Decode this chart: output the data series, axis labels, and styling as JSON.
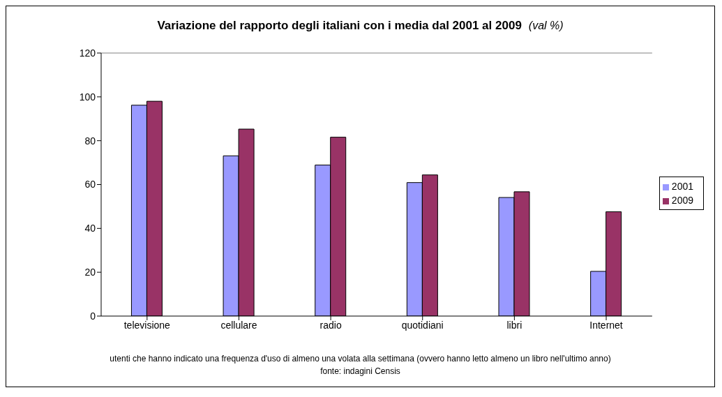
{
  "chart_data": {
    "type": "bar",
    "title": "Variazione del rapporto degli italiani con i media dal 2001 al 2009",
    "subtitle": "(val  %)",
    "categories": [
      "televisione",
      "cellulare",
      "radio",
      "quotidiani",
      "libri",
      "Internet"
    ],
    "series": [
      {
        "name": "2001",
        "color": "#9999ff",
        "values": [
          96.2,
          73.1,
          68.9,
          60.9,
          54.1,
          20.4
        ]
      },
      {
        "name": "2009",
        "color": "#993366",
        "values": [
          98,
          85.3,
          81.6,
          64.4,
          56.7,
          47.6
        ]
      }
    ],
    "ylim": [
      0,
      120
    ],
    "yticks": [
      0,
      20,
      40,
      60,
      80,
      100,
      120
    ],
    "grid": false,
    "legend": "right",
    "annotations": [
      "utenti che hanno indicato una frequenza d'uso di almeno una volata alla settimana (ovvero hanno letto almeno un libro nell'ultimo anno)",
      "fonte: indagini Censis"
    ]
  }
}
